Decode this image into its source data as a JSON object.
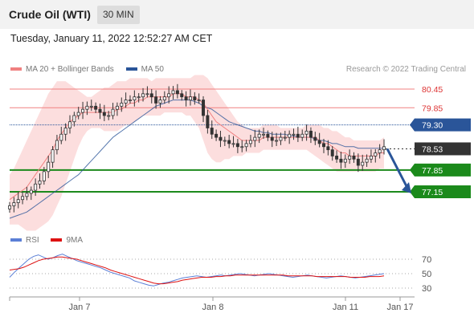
{
  "header": {
    "title": "Crude Oil (WTI)",
    "timeframe": "30 MIN",
    "timestamp": "Tuesday, January 11, 2022 12:52:27 AM CET"
  },
  "legend": {
    "items": [
      {
        "label": "MA 20 + Bollinger Bands",
        "color": "#f08080"
      },
      {
        "label": "MA 50",
        "color": "#2a5599"
      }
    ],
    "credit": "Research © 2022 Trading Central"
  },
  "rsi_legend": {
    "items": [
      {
        "label": "RSI",
        "color": "#5b7fd6"
      },
      {
        "label": "9MA",
        "color": "#dd1111"
      }
    ]
  },
  "chart_data": [
    {
      "type": "line",
      "name": "price",
      "ylim": [
        76.0,
        81.0
      ],
      "x_ticks": [
        "Jan 7",
        "Jan 8",
        "Jan 11",
        "Jan 17"
      ],
      "levels": [
        {
          "value": 80.45,
          "label": "80.45",
          "kind": "resistance"
        },
        {
          "value": 79.85,
          "label": "79.85",
          "kind": "resistance"
        },
        {
          "value": 79.3,
          "label": "79.30",
          "kind": "pivot"
        },
        {
          "value": 78.53,
          "label": "78.53",
          "kind": "last"
        },
        {
          "value": 77.85,
          "label": "77.85",
          "kind": "support"
        },
        {
          "value": 77.15,
          "label": "77.15",
          "kind": "support"
        }
      ],
      "close": [
        76.7,
        76.8,
        76.9,
        77.0,
        77.1,
        77.2,
        77.4,
        77.5,
        77.8,
        78.1,
        78.5,
        78.8,
        79.0,
        79.2,
        79.4,
        79.6,
        79.7,
        79.8,
        79.9,
        79.9,
        79.8,
        79.7,
        79.6,
        79.6,
        79.8,
        79.9,
        80.0,
        80.1,
        80.1,
        80.2,
        80.2,
        80.3,
        80.3,
        80.2,
        80.0,
        80.1,
        80.2,
        80.3,
        80.4,
        80.3,
        80.2,
        80.1,
        80.2,
        80.1,
        80.1,
        79.6,
        79.2,
        79.0,
        78.9,
        78.8,
        78.8,
        78.7,
        78.7,
        78.6,
        78.6,
        78.7,
        78.8,
        78.9,
        79.0,
        79.0,
        78.9,
        78.8,
        78.8,
        78.9,
        78.9,
        79.0,
        79.0,
        78.9,
        79.0,
        79.1,
        78.9,
        78.8,
        78.7,
        78.6,
        78.5,
        78.3,
        78.2,
        78.1,
        78.2,
        78.3,
        78.2,
        78.0,
        78.1,
        78.2,
        78.3,
        78.4,
        78.5,
        78.6
      ],
      "ma20": [
        76.9,
        77.0,
        77.1,
        77.2,
        77.3,
        77.5,
        77.7,
        77.9,
        78.1,
        78.3,
        78.5,
        78.8,
        79.0,
        79.2,
        79.4,
        79.5,
        79.6,
        79.7,
        79.7,
        79.7,
        79.7,
        79.7,
        79.7,
        79.7,
        79.7,
        79.8,
        79.8,
        79.9,
        80.0,
        80.0,
        80.1,
        80.1,
        80.2,
        80.2,
        80.2,
        80.2,
        80.2,
        80.2,
        80.3,
        80.3,
        80.3,
        80.2,
        80.2,
        80.2,
        80.1,
        80.0,
        79.8,
        79.6,
        79.4,
        79.3,
        79.2,
        79.1,
        79.0,
        78.9,
        78.8,
        78.8,
        78.8,
        78.8,
        78.8,
        78.9,
        78.9,
        78.9,
        78.9,
        78.9,
        78.9,
        78.9,
        78.9,
        78.9,
        78.9,
        78.9,
        78.9,
        78.9,
        78.8,
        78.7,
        78.7,
        78.6,
        78.5,
        78.4,
        78.4,
        78.3,
        78.3,
        78.3,
        78.3,
        78.3,
        78.3,
        78.3,
        78.4,
        78.4
      ],
      "bb_upper": [
        77.7,
        77.9,
        78.2,
        78.5,
        78.8,
        79.1,
        79.4,
        79.7,
        80.0,
        80.3,
        80.5,
        80.7,
        80.7,
        80.7,
        80.6,
        80.5,
        80.4,
        80.3,
        80.2,
        80.2,
        80.3,
        80.4,
        80.5,
        80.5,
        80.6,
        80.7,
        80.7,
        80.7,
        80.8,
        80.8,
        80.8,
        80.8,
        80.8,
        80.7,
        80.8,
        80.8,
        80.8,
        80.8,
        80.8,
        80.8,
        80.8,
        80.8,
        80.8,
        80.9,
        80.9,
        80.9,
        80.8,
        80.6,
        80.4,
        80.2,
        80.0,
        79.8,
        79.6,
        79.4,
        79.3,
        79.2,
        79.2,
        79.2,
        79.2,
        79.3,
        79.3,
        79.3,
        79.3,
        79.2,
        79.2,
        79.2,
        79.2,
        79.2,
        79.2,
        79.3,
        79.3,
        79.3,
        79.3,
        79.2,
        79.2,
        79.1,
        79.1,
        79.0,
        78.9,
        78.9,
        78.8,
        78.8,
        78.8,
        78.8,
        78.8,
        78.8,
        78.8,
        78.9
      ],
      "bb_lower": [
        76.1,
        76.1,
        76.1,
        76.0,
        75.9,
        75.9,
        75.9,
        76.0,
        76.1,
        76.2,
        76.4,
        76.7,
        77.0,
        77.4,
        77.8,
        78.2,
        78.6,
        78.9,
        79.1,
        79.2,
        79.2,
        79.2,
        79.1,
        79.1,
        79.1,
        79.1,
        79.2,
        79.3,
        79.3,
        79.4,
        79.5,
        79.6,
        79.6,
        79.6,
        79.6,
        79.6,
        79.7,
        79.7,
        79.7,
        79.7,
        79.7,
        79.6,
        79.6,
        79.4,
        79.2,
        78.8,
        78.4,
        78.2,
        78.1,
        78.1,
        78.2,
        78.2,
        78.3,
        78.3,
        78.3,
        78.4,
        78.4,
        78.4,
        78.4,
        78.5,
        78.5,
        78.5,
        78.5,
        78.5,
        78.5,
        78.5,
        78.5,
        78.5,
        78.5,
        78.5,
        78.4,
        78.3,
        78.2,
        78.1,
        78.0,
        77.9,
        77.8,
        77.8,
        77.8,
        77.8,
        77.8,
        77.8,
        77.8,
        77.8,
        77.8,
        77.8,
        77.9,
        77.9
      ],
      "ma50": [
        76.3,
        76.35,
        76.4,
        76.45,
        76.5,
        76.6,
        76.7,
        76.8,
        76.9,
        77.0,
        77.1,
        77.2,
        77.3,
        77.4,
        77.5,
        77.6,
        77.7,
        77.85,
        78.0,
        78.15,
        78.3,
        78.45,
        78.6,
        78.75,
        78.9,
        79.0,
        79.1,
        79.2,
        79.3,
        79.4,
        79.5,
        79.6,
        79.7,
        79.8,
        79.9,
        79.95,
        80.0,
        80.05,
        80.1,
        80.1,
        80.1,
        80.1,
        80.1,
        80.05,
        80.0,
        79.9,
        79.85,
        79.8,
        79.7,
        79.6,
        79.5,
        79.4,
        79.35,
        79.3,
        79.25,
        79.2,
        79.15,
        79.1,
        79.1,
        79.05,
        79.05,
        79.0,
        79.0,
        79.0,
        79.0,
        78.95,
        78.95,
        78.9,
        78.9,
        78.9,
        78.9,
        78.85,
        78.8,
        78.8,
        78.75,
        78.7,
        78.7,
        78.65,
        78.6,
        78.6,
        78.6,
        78.55,
        78.55,
        78.55,
        78.55,
        78.55,
        78.55,
        78.55
      ]
    },
    {
      "type": "line",
      "name": "rsi",
      "ylim": [
        20,
        80
      ],
      "y_ticks": [
        70,
        50,
        30
      ],
      "rsi": [
        45,
        52,
        58,
        64,
        70,
        74,
        76,
        73,
        70,
        72,
        75,
        77,
        74,
        71,
        68,
        66,
        64,
        62,
        60,
        58,
        55,
        52,
        50,
        48,
        46,
        44,
        40,
        38,
        36,
        34,
        33,
        35,
        37,
        38,
        40,
        42,
        44,
        45,
        46,
        47,
        46,
        45,
        46,
        47,
        48,
        47,
        48,
        49,
        50,
        49,
        48,
        47,
        48,
        49,
        50,
        49,
        48,
        47,
        46,
        45,
        46,
        47,
        48,
        47,
        46,
        45,
        44,
        45,
        46,
        47,
        46,
        45,
        44,
        45,
        46,
        47,
        48,
        49,
        50
      ],
      "ma9": [
        55,
        56,
        57,
        59,
        62,
        65,
        68,
        70,
        71,
        72,
        73,
        73,
        72,
        71,
        70,
        68,
        66,
        64,
        62,
        60,
        58,
        55,
        53,
        51,
        49,
        47,
        45,
        43,
        41,
        39,
        37,
        36,
        36,
        37,
        38,
        39,
        41,
        42,
        43,
        44,
        45,
        45,
        45,
        46,
        46,
        47,
        47,
        48,
        48,
        48,
        48,
        48,
        48,
        48,
        48,
        48,
        48,
        48,
        47,
        47,
        47,
        47,
        47,
        47,
        46,
        46,
        46,
        46,
        46,
        46,
        46,
        45,
        45,
        45,
        45,
        46,
        46,
        46,
        47
      ]
    }
  ]
}
